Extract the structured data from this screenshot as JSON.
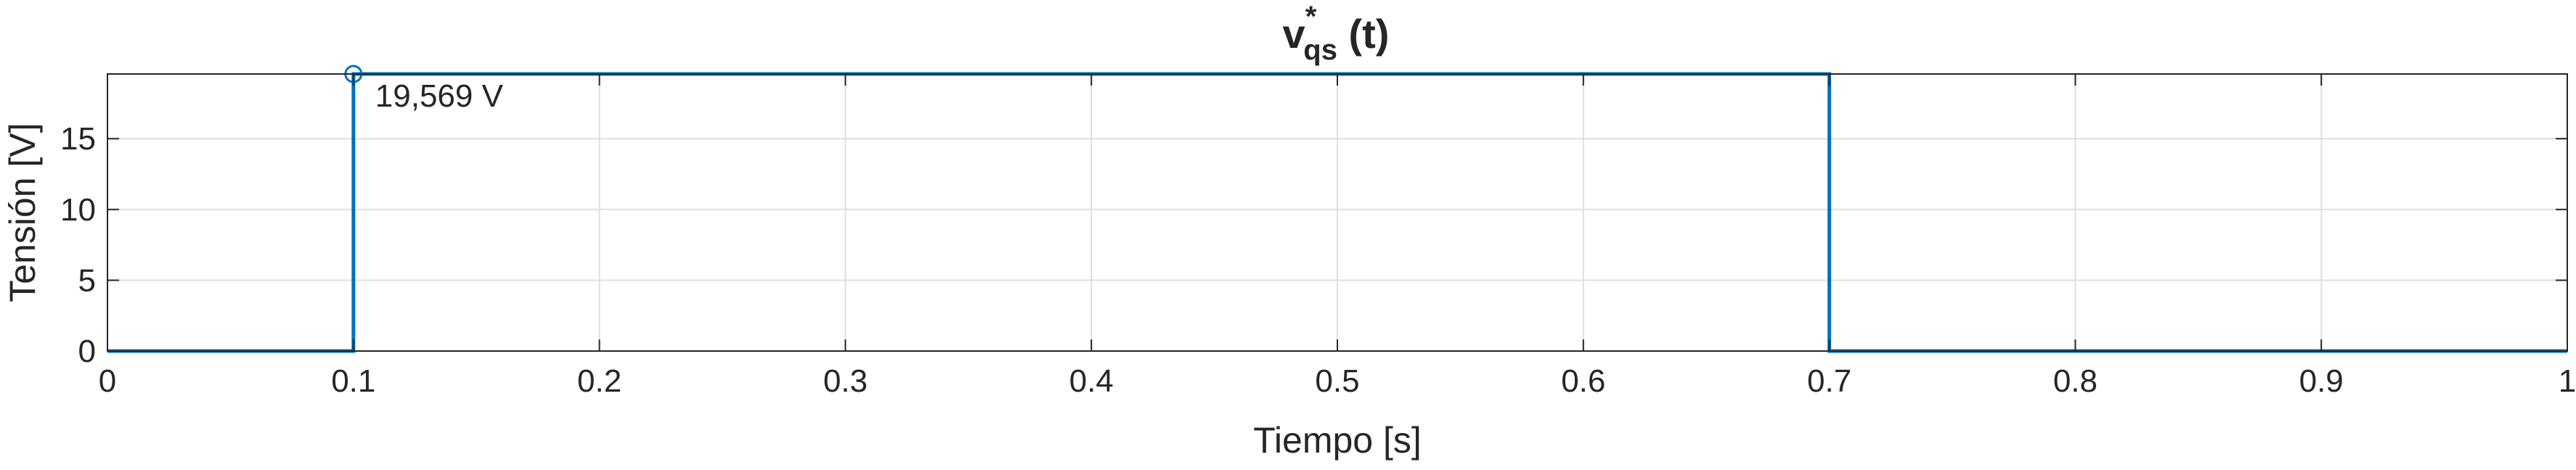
{
  "chart_data": {
    "type": "line",
    "title": {
      "main": "v",
      "superscript": "*",
      "subscript": "qs",
      "suffix": " (t)"
    },
    "xlabel": "Tiempo [s]",
    "ylabel": "Tensión [V]",
    "xlim": [
      0,
      1
    ],
    "ylim": [
      0,
      19.569
    ],
    "x_ticks": [
      0,
      0.1,
      0.2,
      0.3,
      0.4,
      0.5,
      0.6,
      0.7,
      0.8,
      0.9,
      1
    ],
    "x_tick_labels": [
      "0",
      "0.1",
      "0.2",
      "0.3",
      "0.4",
      "0.5",
      "0.6",
      "0.7",
      "0.8",
      "0.9",
      "1"
    ],
    "y_ticks": [
      0,
      5,
      10,
      15
    ],
    "y_tick_labels": [
      "0",
      "5",
      "10",
      "15"
    ],
    "grid": true,
    "line_color": "#0072BD",
    "series": [
      {
        "x": [
          0,
          0.1,
          0.1,
          0.7,
          0.7,
          1
        ],
        "y": [
          0,
          0,
          19.569,
          19.569,
          0,
          0
        ]
      }
    ],
    "annotation": {
      "x": 0.1,
      "y": 19.569,
      "text": "19,569 V"
    }
  }
}
